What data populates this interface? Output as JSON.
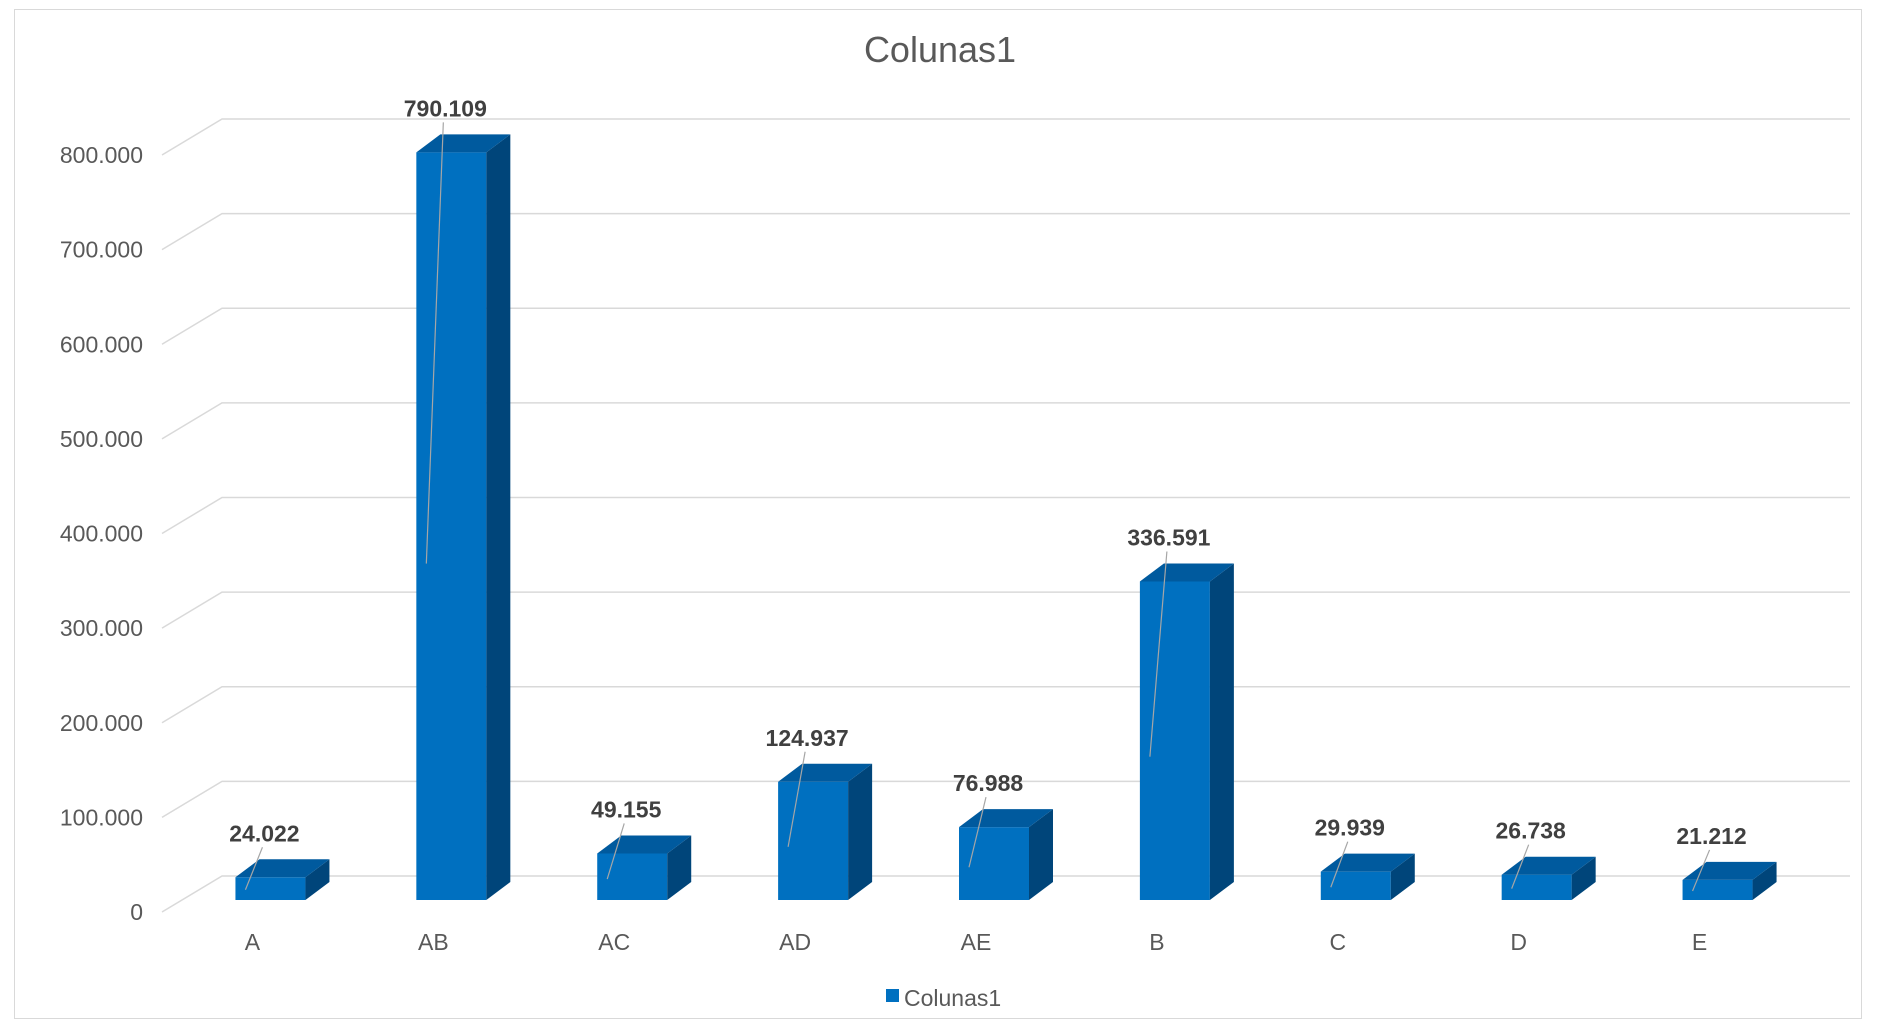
{
  "chart_data": {
    "type": "bar",
    "style": "3d-column",
    "title": "Colunas1",
    "categories": [
      "A",
      "AB",
      "AC",
      "AD",
      "AE",
      "B",
      "C",
      "D",
      "E"
    ],
    "series": [
      {
        "name": "Colunas1",
        "values": [
          24022,
          790109,
          49155,
          124937,
          76988,
          336591,
          29939,
          26738,
          21212
        ],
        "labels": [
          "24.022",
          "790.109",
          "49.155",
          "124.937",
          "76.988",
          "336.591",
          "29.939",
          "26.738",
          "21.212"
        ]
      }
    ],
    "ylim": [
      0,
      800000
    ],
    "yticks": [
      0,
      100000,
      200000,
      300000,
      400000,
      500000,
      600000,
      700000,
      800000
    ],
    "ytick_labels": [
      "0",
      "100.000",
      "200.000",
      "300.000",
      "400.000",
      "500.000",
      "600.000",
      "700.000",
      "800.000"
    ],
    "grid": true,
    "legend_position": "bottom",
    "colors": {
      "bar_front": "#0070C0",
      "bar_top": "#005A9E",
      "bar_side": "#00457A",
      "gridline": "#d9d9d9",
      "text": "#595959",
      "data_label": "#404040"
    }
  }
}
